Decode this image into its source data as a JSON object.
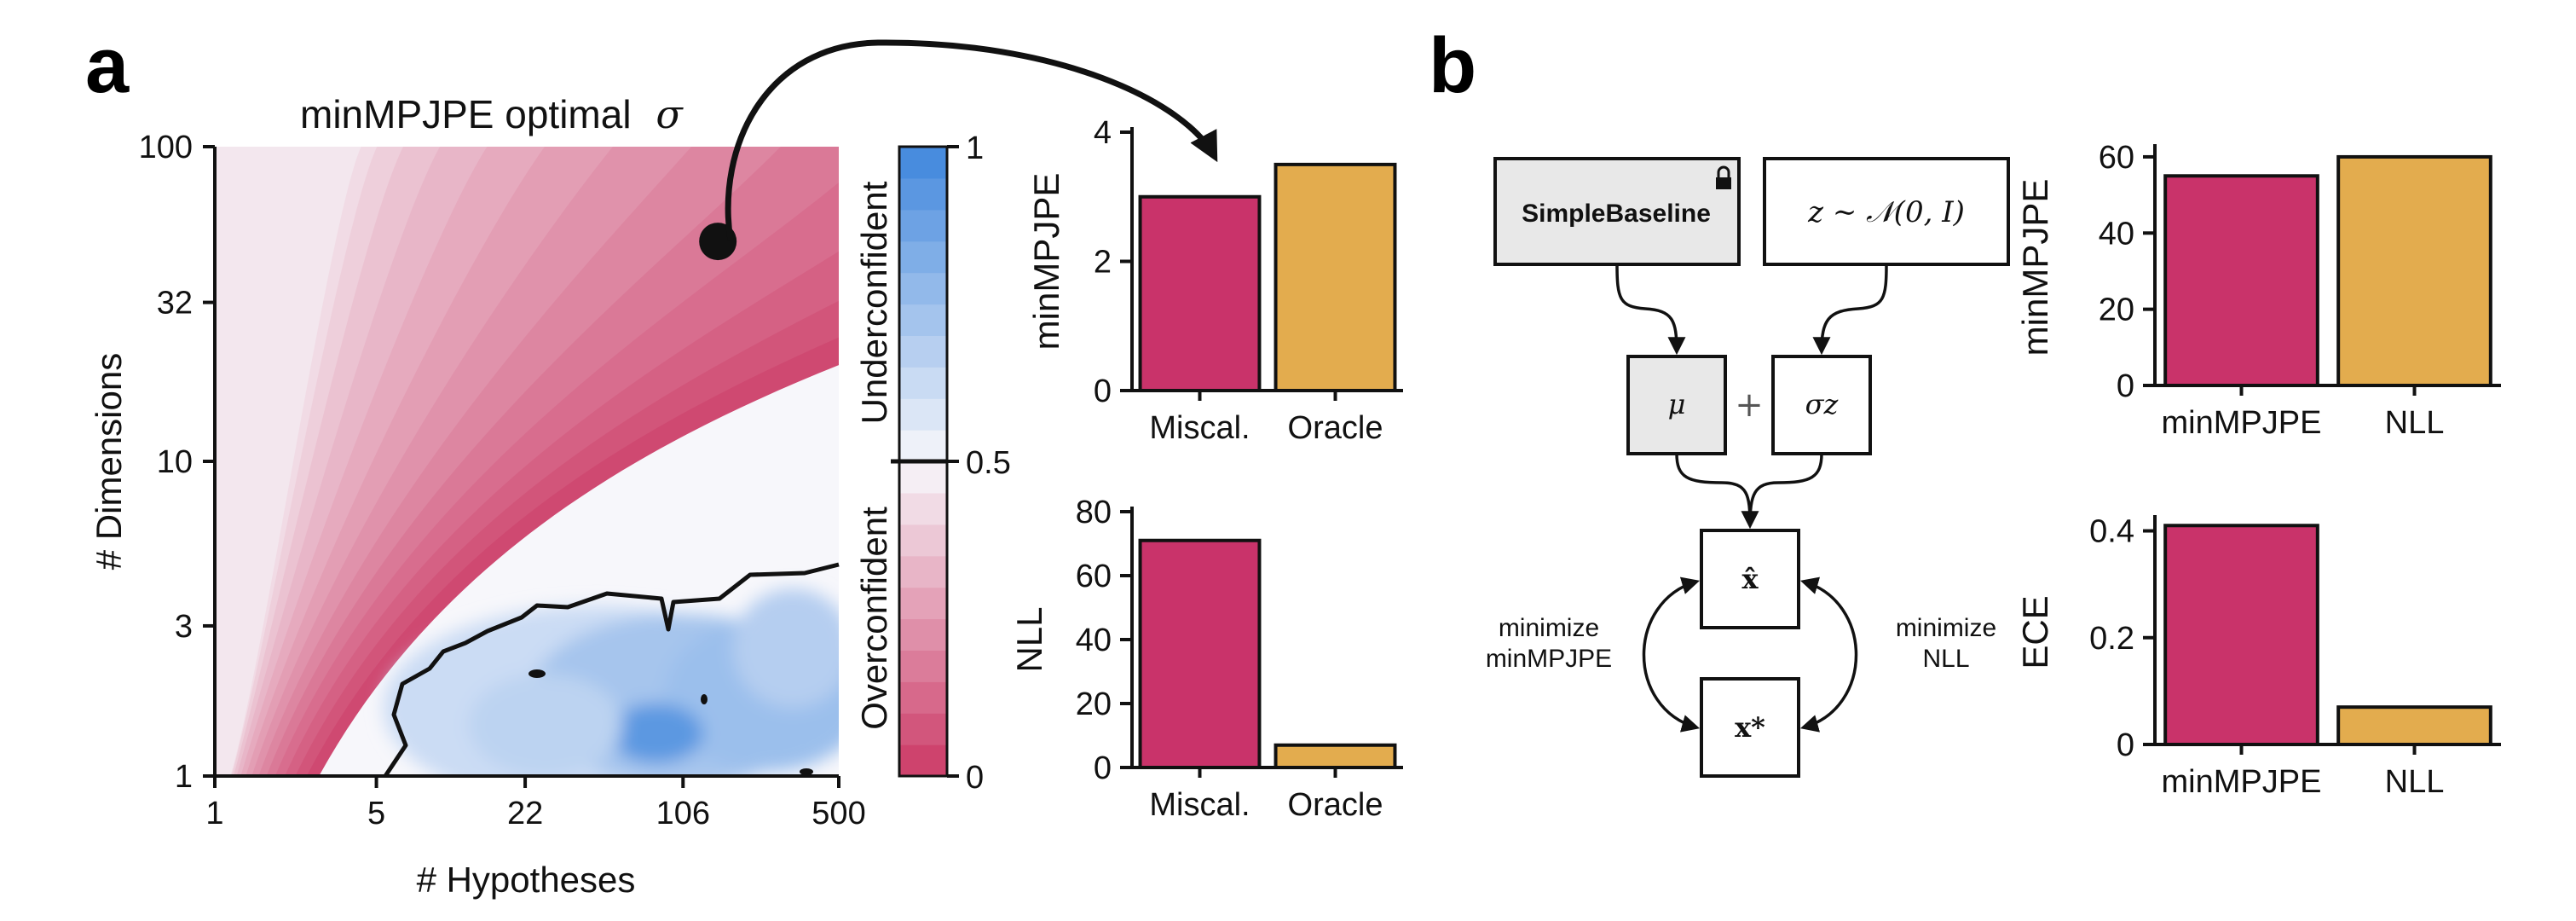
{
  "panels": {
    "a": "a",
    "b": "b"
  },
  "colors": {
    "miscal": "#c9336a",
    "oracle": "#e3ac4e",
    "overconfident": "#cc3a65",
    "neutral": "#f7f7fb",
    "underconfident": "#3f86dc",
    "box_gray": "#e8e8e8"
  },
  "chart_data": [
    {
      "id": "heatmap",
      "type": "heatmap",
      "title": "minMPJPE optimal σ",
      "title_text": "minMPJPE optimal",
      "title_symbol": "σ",
      "xlabel": "# Hypotheses",
      "ylabel": "# Dimensions",
      "x_scale": "log",
      "y_scale": "log",
      "x_ticks": [
        "1",
        "5",
        "22",
        "106",
        "500"
      ],
      "y_ticks": [
        "1",
        "3",
        "10",
        "32",
        "100"
      ],
      "xlim": [
        1,
        500
      ],
      "ylim": [
        1,
        100
      ],
      "colorbar": {
        "ticks": [
          "0",
          "0.5",
          "1"
        ],
        "range": [
          0,
          1
        ],
        "levels": 20,
        "upper_label": "Underconfident",
        "lower_label": "Overconfident"
      },
      "contour_level": 0.5,
      "highlight_point": {
        "hypotheses": 150,
        "dimensions": 50
      }
    },
    {
      "id": "a-minmpjpe",
      "type": "bar",
      "categories": [
        "Miscal.",
        "Oracle"
      ],
      "values": [
        3.0,
        3.5
      ],
      "ylabel": "minMPJPE",
      "ylim": [
        0,
        4
      ],
      "yticks": [
        "0",
        "2",
        "4"
      ]
    },
    {
      "id": "a-nll",
      "type": "bar",
      "categories": [
        "Miscal.",
        "Oracle"
      ],
      "values": [
        71,
        7
      ],
      "ylabel": "NLL",
      "ylim": [
        0,
        80
      ],
      "yticks": [
        "0",
        "20",
        "40",
        "60",
        "80"
      ]
    },
    {
      "id": "b-minmpjpe",
      "type": "bar",
      "categories": [
        "minMPJPE",
        "NLL"
      ],
      "values": [
        55,
        60
      ],
      "ylabel": "minMPJPE",
      "ylim": [
        0,
        62
      ],
      "yticks": [
        "0",
        "20",
        "40",
        "60"
      ]
    },
    {
      "id": "b-ece",
      "type": "bar",
      "categories": [
        "minMPJPE",
        "NLL"
      ],
      "values": [
        0.41,
        0.07
      ],
      "ylabel": "ECE",
      "ylim": [
        0,
        0.42
      ],
      "yticks": [
        "0",
        "0.2",
        "0.4"
      ]
    }
  ],
  "diagram": {
    "baseline": "SimpleBaseline",
    "noise": "z ∼ 𝒩(0, I)",
    "mu": "μ",
    "plus": "+",
    "sigma_z": "σz",
    "x_hat": "x̂",
    "x_star": "x*",
    "left_line1": "minimize",
    "left_line2": "minMPJPE",
    "right_line1": "minimize",
    "right_line2": "NLL"
  }
}
